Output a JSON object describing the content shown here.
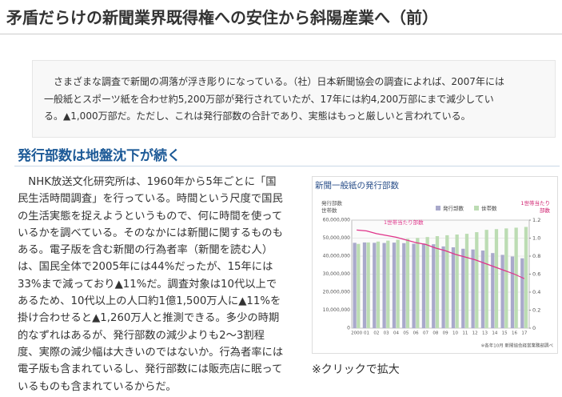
{
  "header": {
    "title": "矛盾だらけの新聞業界既得権への安住から斜陽産業へ（前）"
  },
  "intro": {
    "lines": [
      "　さまざまな調査で新聞の凋落が浮き彫りになっている。（社）日本新聞協会の調査によれば、2007年には",
      "一般紙とスポーツ紙を合わせ約5,200万部が発行されていたが、17年には約4,200万部にまで減少してい",
      "る。▲1,000万部だ。ただし、これは発行部数の合計であり、実態はもっと厳しいと言われている。"
    ]
  },
  "section": {
    "heading": "発行部数は地盤沈下が続く",
    "lines": [
      "　NHK放送文化研究所は、1960年から5年ごとに「国",
      "民生活時間調査」を行っている。時間という尺度で国民",
      "の生活実態を捉えようというもので、何に時間を使って",
      "いるかを調べている。そのなかには新聞に関するものも",
      "ある。電子版を含む新聞の行為者率（新聞を読む人）",
      "は、国民全体で2005年には44%だったが、15年には",
      "33%まで減っており▲11%だ。調査対象は10代以上で",
      "あるため、10代以上の人口約1億1,500万人に▲11%を",
      "掛け合わせると▲1,260万人と推測できる。多少の時期",
      "的なずれはあるが、発行部数の減少よりも2〜3割程",
      "度、実際の減少幅は大きいのではないか。行為者率には",
      "電子版も含まれているし、発行部数には販売店に眠って",
      "いるものも含まれているからだ。"
    ],
    "caption": "※クリックで拡大"
  },
  "chart_data": {
    "type": "bar",
    "title": "新聞一般紙の発行部数",
    "ylabel": [
      "発行部数",
      "世帯数"
    ],
    "y2label": [
      "1世帯当たり",
      "部数"
    ],
    "note": "※各年10月 新聞協会経営業務部調べ",
    "categories": [
      "2000",
      "01",
      "02",
      "03",
      "04",
      "05",
      "06",
      "07",
      "08",
      "09",
      "10",
      "11",
      "12",
      "13",
      "14",
      "15",
      "16",
      "17"
    ],
    "series": [
      {
        "name": "発行部数",
        "color": "#a9a9cb",
        "values": [
          47400000,
          47600000,
          47400000,
          47300000,
          47500000,
          47200000,
          46900000,
          47000000,
          46600000,
          45400000,
          44900000,
          44100000,
          43700000,
          43100000,
          41700000,
          40700000,
          39800000,
          38800000
        ]
      },
      {
        "name": "世帯数",
        "color": "#bcdcb3",
        "values": [
          46800000,
          47600000,
          48100000,
          48600000,
          49100000,
          49600000,
          50100000,
          50600000,
          51100000,
          51600000,
          52000000,
          52400000,
          53300000,
          54600000,
          55000000,
          55400000,
          55800000,
          56200000
        ]
      },
      {
        "name": "1世帯当たり部数",
        "color": "#e0338a",
        "type": "line",
        "axis": "y2",
        "values": [
          1.09,
          1.08,
          1.05,
          1.03,
          1.01,
          0.98,
          0.95,
          0.93,
          0.89,
          0.86,
          0.82,
          0.79,
          0.76,
          0.72,
          0.68,
          0.64,
          0.6,
          0.55
        ]
      }
    ],
    "ylim": [
      0,
      60000000
    ],
    "yticks": [
      0,
      {
        "value": 10000000,
        "label": "10,000,000"
      },
      {
        "value": 20000000,
        "label": "20,000,000"
      },
      {
        "value": 30000000,
        "label": "30,000,000"
      },
      {
        "value": 40000000,
        "label": "40,000,000"
      },
      {
        "value": 50000000,
        "label": "50,000,000"
      },
      {
        "value": 60000000,
        "label": "60,000,000"
      }
    ],
    "y2lim": [
      0,
      1.2
    ],
    "y2ticks": [
      0,
      0.2,
      0.4,
      0.6,
      0.8,
      {
        "value": 1,
        "label": "1.0"
      },
      1.2
    ],
    "grid": true
  }
}
